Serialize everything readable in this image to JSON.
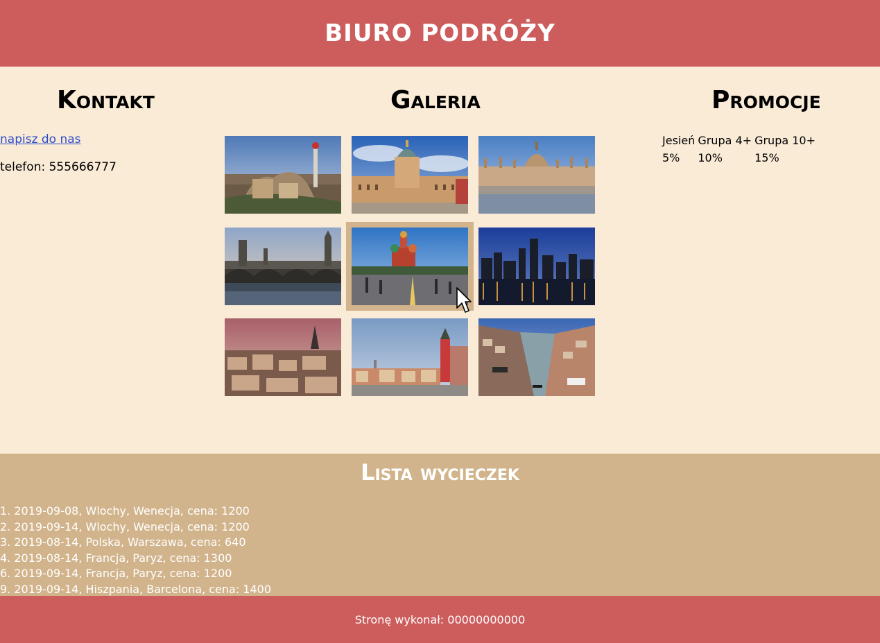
{
  "header": {
    "title": "BIURO PODRÓŻY"
  },
  "contact": {
    "title": "Kontakt",
    "email_link": "napisz do nas",
    "phone": "telefon: 555666777"
  },
  "gallery": {
    "title": "Galeria",
    "images": [
      {
        "icon": "park-guell-photo"
      },
      {
        "icon": "palace-photo"
      },
      {
        "icon": "parliament-photo"
      },
      {
        "icon": "london-bridge-photo"
      },
      {
        "icon": "moscow-square-photo"
      },
      {
        "icon": "night-skyline-photo"
      },
      {
        "icon": "paris-rooftops-photo"
      },
      {
        "icon": "warsaw-old-town-photo"
      },
      {
        "icon": "venice-canal-photo"
      }
    ]
  },
  "promotions": {
    "title": "Promocje",
    "headers": [
      "Jesień",
      "Grupa 4+",
      "Grupa 10+"
    ],
    "values": [
      "5%",
      "10%",
      "15%"
    ]
  },
  "trips": {
    "title": "Lista wycieczek",
    "items": [
      "1. 2019-09-08, Wlochy, Wenecja, cena: 1200",
      "2. 2019-09-14, Wlochy, Wenecja, cena: 1200",
      "3. 2019-08-14, Polska, Warszawa, cena: 640",
      "4. 2019-08-14, Francja, Paryz, cena: 1300",
      "6. 2019-09-14, Francja, Paryz, cena: 1200",
      "9. 2019-09-14, Hiszpania, Barcelona, cena: 1400"
    ]
  },
  "footer": {
    "text": "Stronę wykonał: 00000000000"
  },
  "colors": {
    "header_bg": "#cd5c5c",
    "body_bg": "#faebd7",
    "list_bg": "#d2b48c"
  }
}
